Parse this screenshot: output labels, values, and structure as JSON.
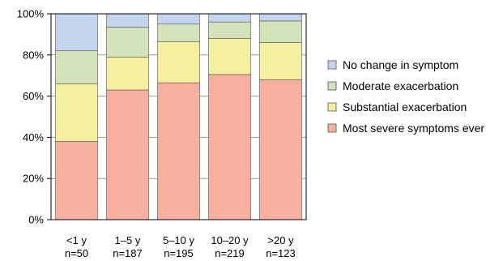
{
  "chart_data": {
    "type": "bar",
    "stacked": true,
    "categories": [
      "<1 y",
      "1–5 y",
      "5–10 y",
      "10–20 y",
      ">20 y"
    ],
    "category_counts": [
      "n=50",
      "n=187",
      "n=195",
      "n=219",
      "n=123"
    ],
    "series": [
      {
        "name": "Most severe symptoms ever",
        "color": "#f7b09e",
        "values": [
          38,
          63,
          66.5,
          70.5,
          68
        ]
      },
      {
        "name": "Substantial exacerbation",
        "color": "#f5f0a0",
        "values": [
          28,
          16,
          20,
          17.5,
          18
        ]
      },
      {
        "name": "Moderate exacerbation",
        "color": "#d3e2b9",
        "values": [
          16,
          14.5,
          8.5,
          8,
          10.5
        ]
      },
      {
        "name": "No change in symptom",
        "color": "#c3d4ef",
        "values": [
          18,
          6.5,
          5,
          4,
          3.5
        ]
      }
    ],
    "y_tick_labels": [
      "0%",
      "20%",
      "40%",
      "60%",
      "80%",
      "100%"
    ],
    "ylim": [
      0,
      100
    ],
    "legend_order": [
      "No change in symptom",
      "Moderate exacerbation",
      "Substantial exacerbation",
      "Most severe symptoms ever"
    ],
    "legend_position": "right",
    "grid": true
  }
}
